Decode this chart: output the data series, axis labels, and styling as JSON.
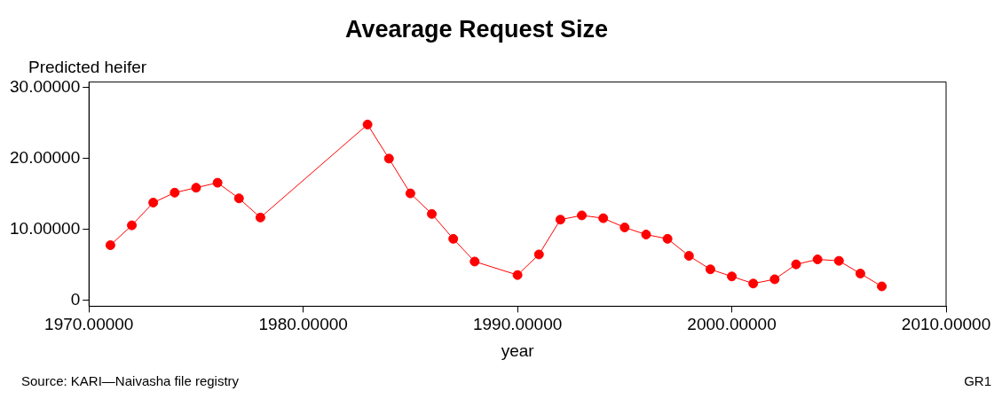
{
  "chart_data": {
    "type": "line",
    "title": "Avearage Request Size",
    "xlabel": "year",
    "ylabel": "Predicted heifer",
    "annotations": [
      "Source: KARI—Naivasha file registry",
      "GR1"
    ],
    "x": [
      1971,
      1972,
      1973,
      1974,
      1975,
      1976,
      1977,
      1978,
      1983,
      1984,
      1985,
      1986,
      1987,
      1988,
      1990,
      1991,
      1992,
      1993,
      1994,
      1995,
      1996,
      1997,
      1998,
      1999,
      2000,
      2001,
      2002,
      2003,
      2004,
      2005,
      2006,
      2007
    ],
    "series": [
      {
        "color": "#ff0000",
        "values": [
          7.8,
          10.6,
          13.8,
          15.2,
          15.9,
          16.6,
          14.4,
          11.7,
          24.8,
          20.0,
          15.1,
          12.2,
          8.7,
          5.5,
          3.6,
          6.5,
          11.4,
          12.0,
          11.6,
          10.3,
          9.3,
          8.7,
          6.3,
          4.4,
          3.4,
          2.4,
          3.0,
          5.1,
          5.8,
          5.6,
          3.8,
          2.0
        ]
      }
    ],
    "marker": "circle",
    "line_style": "solid",
    "grid": false,
    "legend": false,
    "xlim": [
      1970,
      2010
    ],
    "ylim": [
      -0.8,
      30.8
    ],
    "xticks": [
      {
        "value": 1970,
        "label": "1970.00000"
      },
      {
        "value": 1980,
        "label": "1980.00000"
      },
      {
        "value": 1990,
        "label": "1990.00000"
      },
      {
        "value": 2000,
        "label": "2000.00000"
      },
      {
        "value": 2010,
        "label": "2010.00000"
      }
    ],
    "yticks": [
      0,
      {
        "value": 10,
        "label": "10.00000"
      },
      {
        "value": 20,
        "label": "20.00000"
      },
      {
        "value": 30,
        "label": "30.00000"
      }
    ]
  }
}
